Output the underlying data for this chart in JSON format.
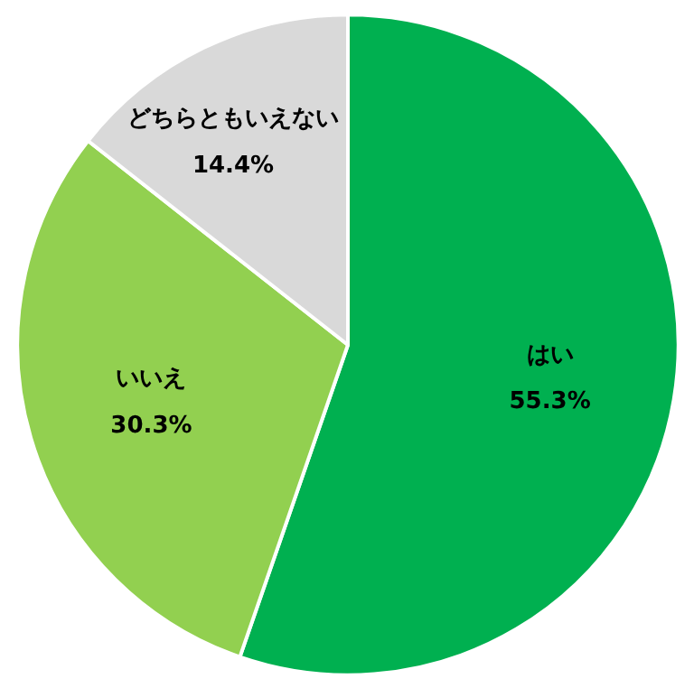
{
  "chart_data": {
    "type": "pie",
    "categories": [
      "はい",
      "いいえ",
      "どちらともいえない"
    ],
    "values": [
      55.3,
      30.3,
      14.4
    ],
    "value_labels": [
      "55.3%",
      "30.3%",
      "14.4%"
    ],
    "colors": [
      "#00b050",
      "#92d050",
      "#d9d9d9"
    ]
  }
}
